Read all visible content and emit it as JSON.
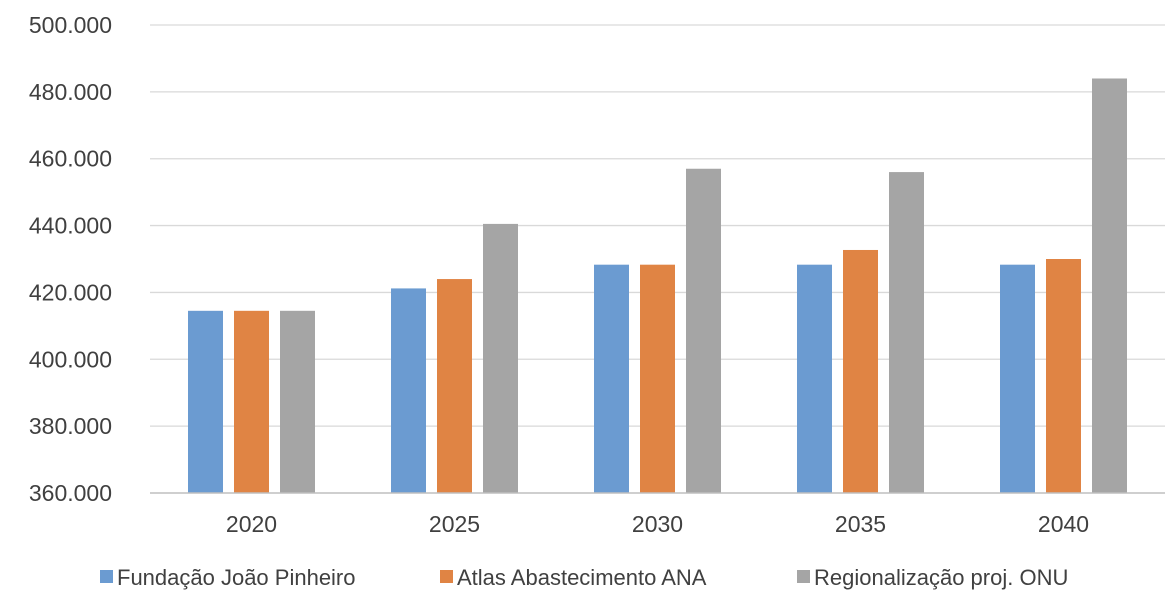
{
  "chart_data": {
    "type": "bar",
    "categories": [
      "2020",
      "2025",
      "2030",
      "2035",
      "2040"
    ],
    "series": [
      {
        "name": "Fundação João Pinheiro",
        "color": "#6b9bd1",
        "values": [
          414500,
          421200,
          428300,
          428300,
          428300
        ]
      },
      {
        "name": "Atlas Abastecimento ANA",
        "color": "#e08444",
        "values": [
          414500,
          424000,
          428300,
          432700,
          430000
        ]
      },
      {
        "name": "Regionalização proj. ONU",
        "color": "#a5a5a5",
        "values": [
          414500,
          440500,
          457000,
          456000,
          484000
        ]
      }
    ],
    "yticks": [
      "360.000",
      "380.000",
      "400.000",
      "420.000",
      "440.000",
      "460.000",
      "480.000",
      "500.000"
    ],
    "ylim": [
      360000,
      500000
    ],
    "grid": true,
    "legend_position": "bottom",
    "gridline_color": "#d9d9d9",
    "axis_color": "#bfbfbf"
  }
}
